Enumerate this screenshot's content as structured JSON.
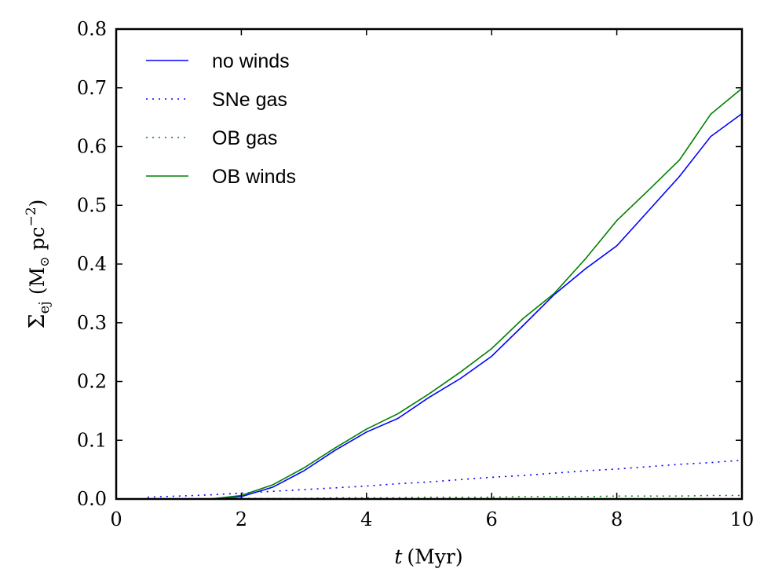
{
  "chart_data": {
    "type": "line",
    "title": "",
    "xlabel": {
      "italic": "t",
      "unit": "(Myr)"
    },
    "ylabel": {
      "sym": "Σ",
      "sub": "ej",
      "units_pre": "(M",
      "sun": "⊙",
      "units_mid": " pc",
      "sup": "−2",
      "units_post": ")"
    },
    "xlim": [
      0,
      10
    ],
    "ylim": [
      0,
      0.8
    ],
    "xticks": [
      0,
      2,
      4,
      6,
      8,
      10
    ],
    "xtick_labels": [
      "0",
      "2",
      "4",
      "6",
      "8",
      "10"
    ],
    "yticks": [
      0.0,
      0.1,
      0.2,
      0.3,
      0.4,
      0.5,
      0.6,
      0.7,
      0.8
    ],
    "ytick_labels": [
      "0.0",
      "0.1",
      "0.2",
      "0.3",
      "0.4",
      "0.5",
      "0.6",
      "0.7",
      "0.8"
    ],
    "grid": false,
    "legend_position": "top-left",
    "series": [
      {
        "name": "no winds",
        "color": "#0000ff",
        "style": "solid",
        "x": [
          0.5,
          1.0,
          1.5,
          2.0,
          2.5,
          3.0,
          3.5,
          4.0,
          4.5,
          5.0,
          5.5,
          6.0,
          6.5,
          7.0,
          7.5,
          8.0,
          8.5,
          9.0,
          9.5,
          10.0
        ],
        "values": [
          0.0,
          0.0,
          0.0,
          0.004,
          0.02,
          0.048,
          0.083,
          0.114,
          0.137,
          0.173,
          0.205,
          0.243,
          0.295,
          0.348,
          0.392,
          0.431,
          0.49,
          0.549,
          0.617,
          0.656
        ]
      },
      {
        "name": "SNe gas",
        "color": "#0000ff",
        "style": "dotted",
        "x": [
          0.5,
          1.0,
          1.5,
          2.0,
          2.5,
          3.0,
          3.5,
          4.0,
          4.5,
          5.0,
          5.5,
          6.0,
          6.5,
          7.0,
          7.5,
          8.0,
          8.5,
          9.0,
          9.5,
          10.0
        ],
        "values": [
          0.003,
          0.005,
          0.007,
          0.01,
          0.013,
          0.016,
          0.019,
          0.022,
          0.026,
          0.029,
          0.033,
          0.037,
          0.04,
          0.044,
          0.048,
          0.051,
          0.055,
          0.059,
          0.062,
          0.066
        ]
      },
      {
        "name": "OB gas",
        "color": "#008000",
        "style": "dotted",
        "x": [
          0.5,
          1.0,
          1.5,
          2.0,
          2.5,
          3.0,
          3.5,
          4.0,
          4.5,
          5.0,
          5.5,
          6.0,
          6.5,
          7.0,
          7.5,
          8.0,
          8.5,
          9.0,
          9.5,
          10.0
        ],
        "values": [
          0.0,
          0.0,
          0.0,
          0.001,
          0.001,
          0.001,
          0.002,
          0.002,
          0.002,
          0.003,
          0.003,
          0.003,
          0.004,
          0.004,
          0.004,
          0.005,
          0.005,
          0.005,
          0.006,
          0.006
        ]
      },
      {
        "name": "OB winds",
        "color": "#008000",
        "style": "solid",
        "x": [
          0.5,
          1.0,
          1.5,
          2.0,
          2.5,
          3.0,
          3.5,
          4.0,
          4.5,
          5.0,
          5.5,
          6.0,
          6.5,
          7.0,
          7.5,
          8.0,
          8.5,
          9.0,
          9.5,
          10.0
        ],
        "values": [
          0.0,
          0.0,
          0.0,
          0.006,
          0.024,
          0.053,
          0.087,
          0.119,
          0.145,
          0.179,
          0.216,
          0.256,
          0.307,
          0.35,
          0.409,
          0.474,
          0.525,
          0.577,
          0.655,
          0.699
        ]
      }
    ]
  }
}
